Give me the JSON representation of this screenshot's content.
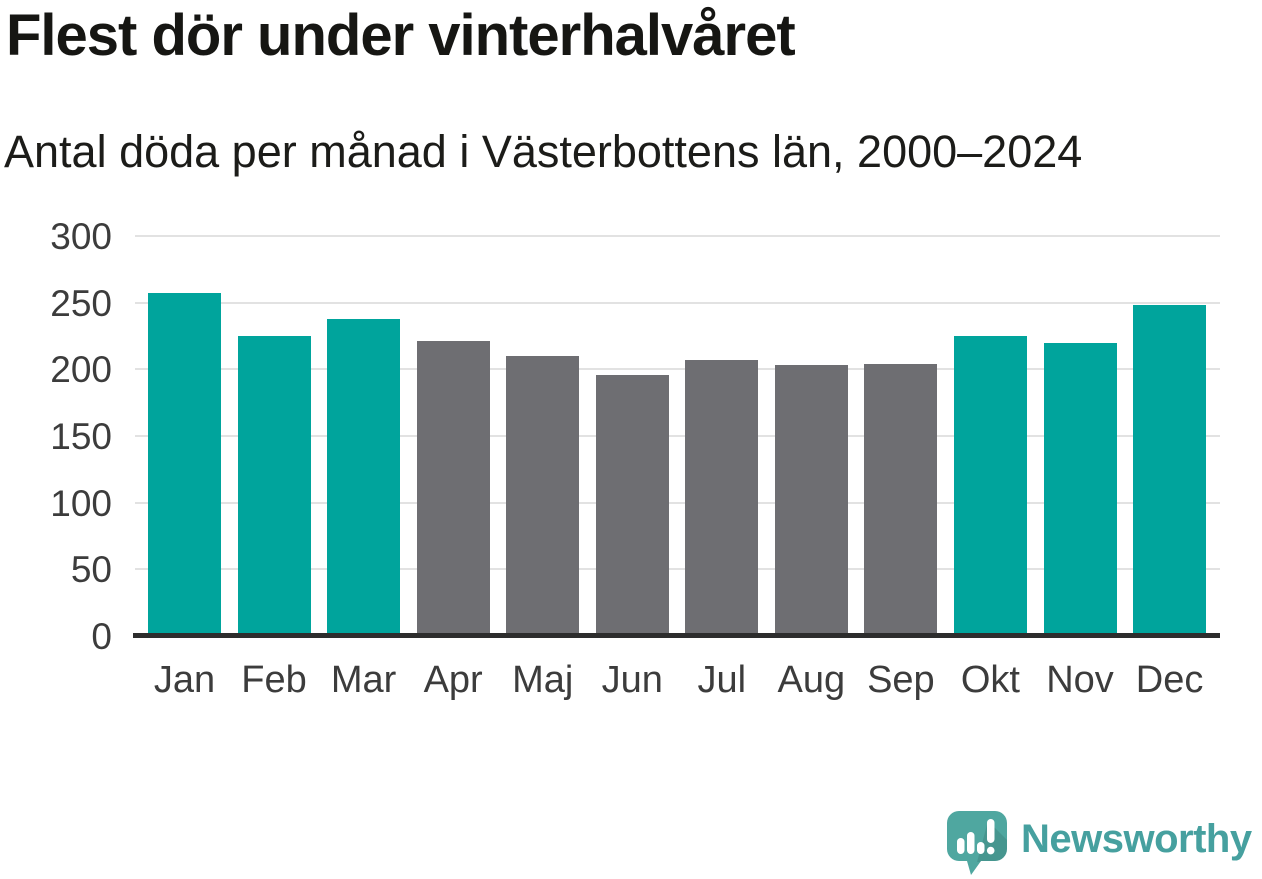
{
  "header": {
    "title": "Flest dör under vinterhalvåret",
    "subtitle": "Antal döda per månad i Västerbottens län, 2000–2024"
  },
  "chart_data": {
    "type": "bar",
    "title": "Flest dör under vinterhalvåret",
    "subtitle": "Antal döda per månad i Västerbottens län, 2000–2024",
    "categories": [
      "Jan",
      "Feb",
      "Mar",
      "Apr",
      "Maj",
      "Jun",
      "Jul",
      "Aug",
      "Sep",
      "Okt",
      "Nov",
      "Dec"
    ],
    "values": [
      257,
      225,
      238,
      221,
      210,
      196,
      207,
      203,
      204,
      225,
      220,
      248
    ],
    "bar_roles": [
      "highlight",
      "highlight",
      "highlight",
      "neutral",
      "neutral",
      "neutral",
      "neutral",
      "neutral",
      "neutral",
      "highlight",
      "highlight",
      "highlight"
    ],
    "highlight_color": "#00a49c",
    "neutral_color": "#6e6e72",
    "grid_color": "#e2e2e2",
    "axis_color": "#2d2d2d",
    "tick_label_color": "#3c3c3c",
    "xlabel": "",
    "ylabel": "",
    "ylim": [
      0,
      300
    ],
    "yticks": [
      0,
      50,
      100,
      150,
      200,
      250,
      300
    ],
    "grid": true,
    "legend": false
  },
  "footer": {
    "brand": "Newsworthy",
    "brand_color": "#46a09f",
    "logo_color": "#4fa7a0",
    "logo_icon": "newsworthy-speech-bubble-bar-chart-icon"
  }
}
